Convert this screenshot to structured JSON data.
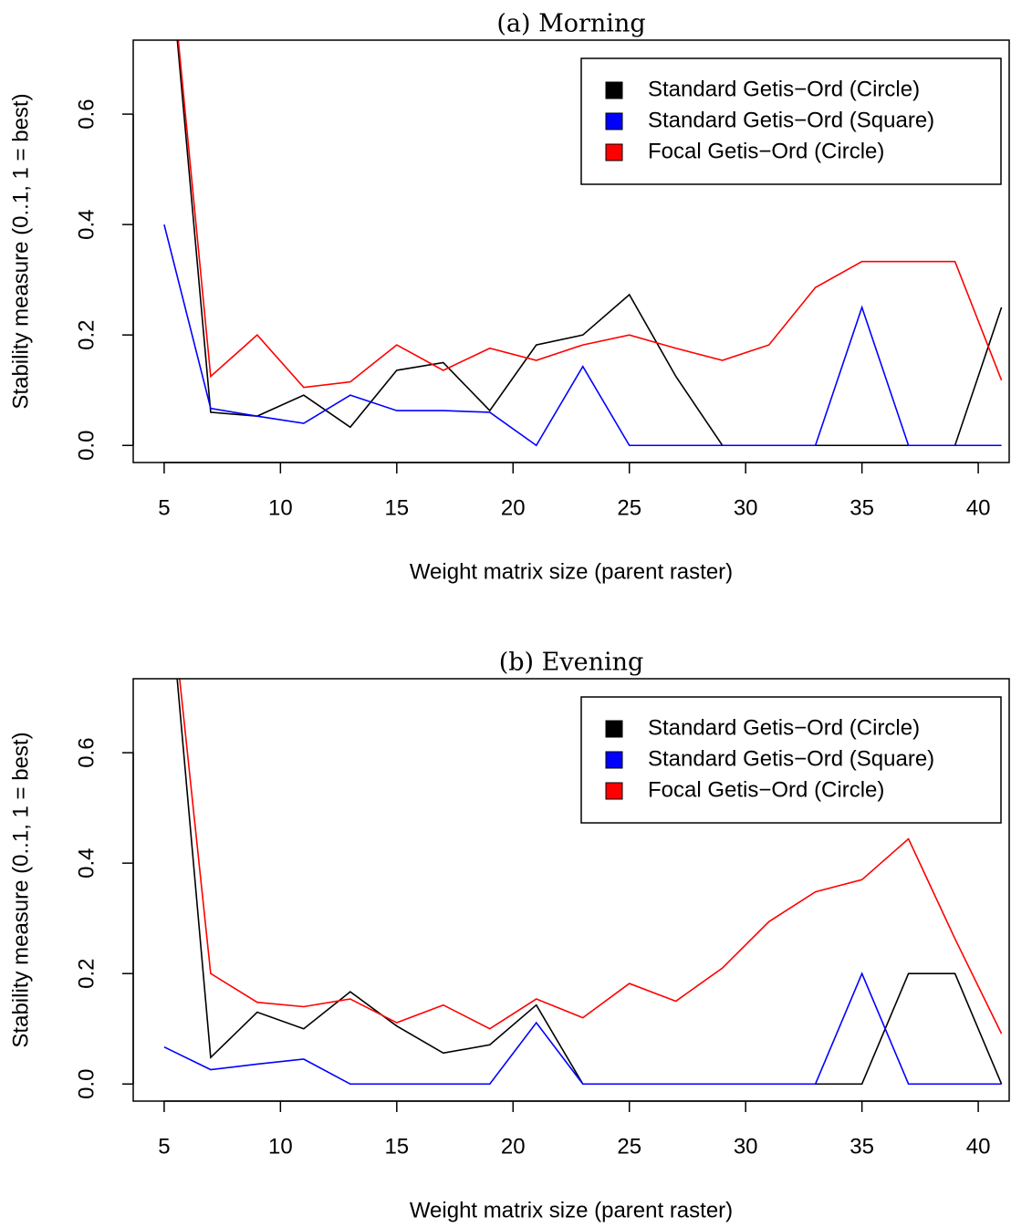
{
  "chart_data": [
    {
      "type": "line",
      "title": "(a) Morning",
      "xlabel": "Weight matrix size (parent raster)",
      "ylabel": "Stability measure (0..1, 1 = best)",
      "x": [
        5,
        7,
        9,
        11,
        13,
        15,
        17,
        19,
        21,
        23,
        25,
        27,
        29,
        31,
        33,
        35,
        37,
        39,
        41
      ],
      "series": [
        {
          "name": "Standard Getis−Ord (Circle)",
          "color": "#000000",
          "values": [
            1.0,
            0.06,
            0.053,
            0.091,
            0.033,
            0.136,
            0.15,
            0.063,
            0.182,
            0.2,
            0.273,
            0.125,
            0,
            0,
            0,
            0,
            0,
            0,
            0.25
          ]
        },
        {
          "name": "Standard Getis−Ord (Square)",
          "color": "#0000ff",
          "values": [
            0.4,
            0.067,
            0.053,
            0.04,
            0.091,
            0.063,
            0.063,
            0.06,
            0,
            0.143,
            0,
            0,
            0,
            0,
            0,
            0.25,
            0,
            0,
            0
          ]
        },
        {
          "name": "Focal Getis−Ord (Circle)",
          "color": "#ff0000",
          "values": [
            1.0,
            0.125,
            0.2,
            0.105,
            0.115,
            0.182,
            0.136,
            0.176,
            0.154,
            0.182,
            0.2,
            0.176,
            0.154,
            0.182,
            0.286,
            0.333,
            0.333,
            0.333,
            0.118
          ]
        }
      ],
      "xlim": [
        3.67,
        41.33
      ],
      "xticks": [
        5,
        10,
        15,
        20,
        25,
        30,
        35,
        40
      ],
      "ylim": [
        -0.031,
        0.734
      ],
      "yticks": [
        {
          "value": 0,
          "label": "0.0"
        },
        0.2,
        0.4,
        0.6
      ],
      "legend": "topright"
    },
    {
      "type": "line",
      "title": "(b) Evening",
      "xlabel": "Weight matrix size (parent raster)",
      "ylabel": "Stability measure (0..1, 1 = best)",
      "x": [
        5,
        7,
        9,
        11,
        13,
        15,
        17,
        19,
        21,
        23,
        25,
        27,
        29,
        31,
        33,
        35,
        37,
        39,
        41
      ],
      "series": [
        {
          "name": "Standard Getis−Ord (Circle)",
          "color": "#000000",
          "values": [
            1.0,
            0.048,
            0.13,
            0.1,
            0.167,
            0.105,
            0.056,
            0.071,
            0.143,
            0,
            0,
            0,
            0,
            0,
            0,
            0,
            0.2,
            0.2,
            0
          ]
        },
        {
          "name": "Standard Getis−Ord (Square)",
          "color": "#0000ff",
          "values": [
            0.067,
            0.026,
            0.036,
            0.045,
            0,
            0,
            0,
            0,
            0.111,
            0,
            0,
            0,
            0,
            0,
            0,
            0.2,
            0,
            0,
            0
          ]
        },
        {
          "name": "Focal Getis−Ord (Circle)",
          "color": "#ff0000",
          "values": [
            1.0,
            0.2,
            0.148,
            0.14,
            0.154,
            0.111,
            0.143,
            0.1,
            0.154,
            0.12,
            0.182,
            0.15,
            0.21,
            0.294,
            0.348,
            0.37,
            0.444,
            0.263,
            0.091
          ]
        }
      ],
      "xlim": [
        3.67,
        41.33
      ],
      "xticks": [
        5,
        10,
        15,
        20,
        25,
        30,
        35,
        40
      ],
      "ylim": [
        -0.031,
        0.734
      ],
      "yticks": [
        {
          "value": 0,
          "label": "0.0"
        },
        0.2,
        0.4,
        0.6
      ],
      "legend": "topright"
    }
  ]
}
